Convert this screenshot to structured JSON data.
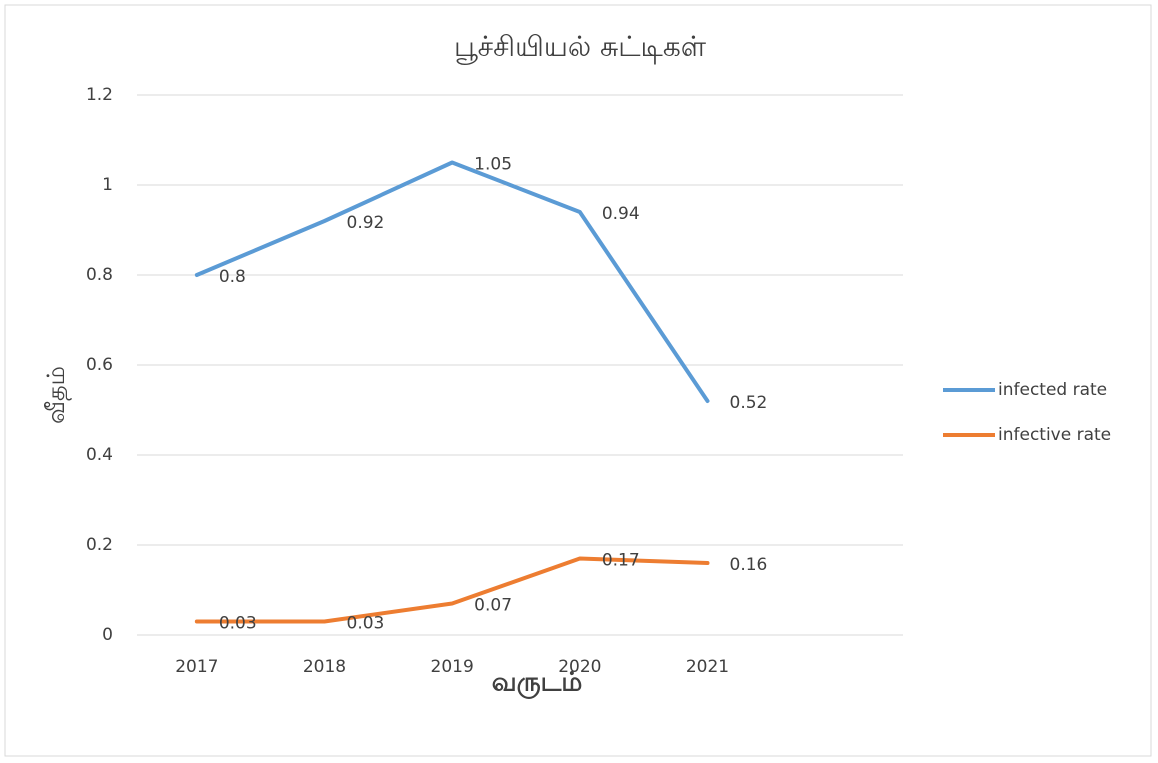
{
  "chart_data": {
    "type": "line",
    "title": "பூச்சியியல் சுட்டிகள்",
    "x_label": "வருடம்",
    "y_label": "வீதம்",
    "categories": [
      "2017",
      "2018",
      "2019",
      "2020",
      "2021",
      null
    ],
    "series": [
      {
        "name": "infected rate",
        "color": "#5b9bd5",
        "values": [
          0.8,
          0.92,
          1.05,
          0.94,
          0.52,
          null
        ]
      },
      {
        "name": "infective rate",
        "color": "#ed7d31",
        "values": [
          0.03,
          0.03,
          0.07,
          0.17,
          0.16,
          null
        ]
      }
    ],
    "ylim": [
      0,
      1.2
    ],
    "yticks": [
      0,
      0.2,
      0.4,
      0.6,
      0.8,
      1,
      1.2
    ],
    "grid": true,
    "legend": "right"
  }
}
